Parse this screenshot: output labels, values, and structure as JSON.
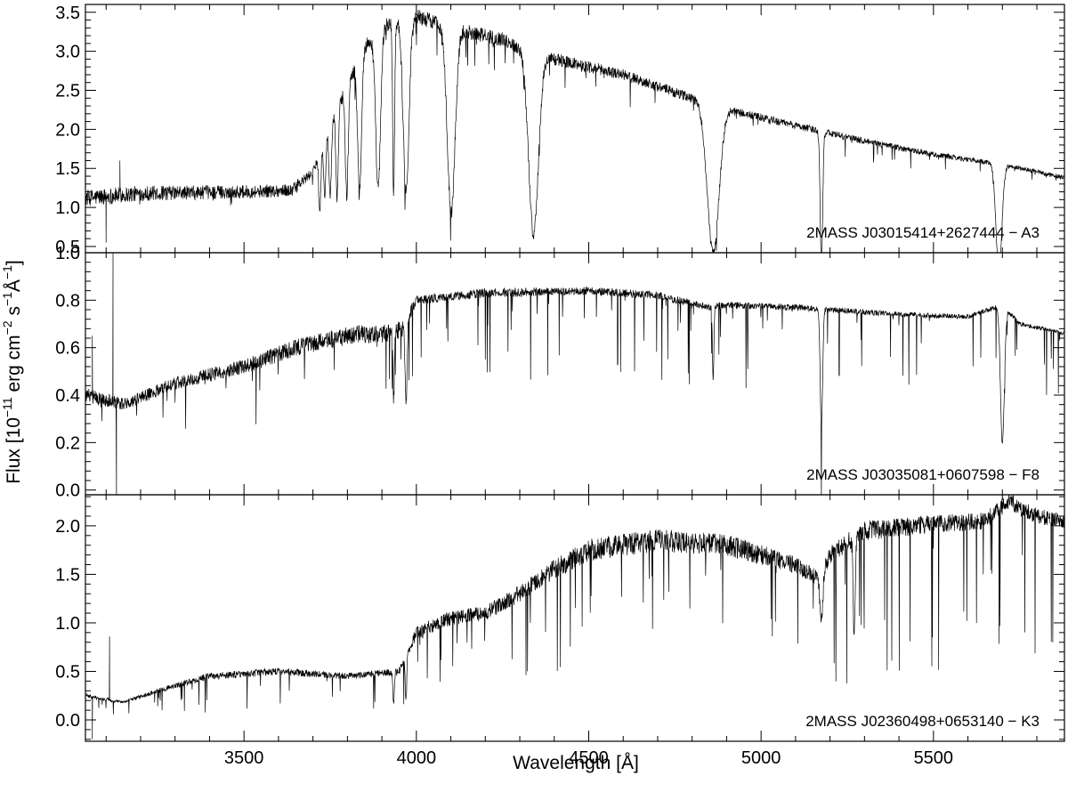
{
  "chart_data": {
    "type": "line",
    "xlabel": "Wavelength [Å]",
    "ylabel": {
      "prefix": "Flux [10",
      "exp1": "−11",
      "mid1": " erg cm",
      "exp2": "−2",
      "mid2": " s",
      "exp3": "−1",
      "mid3": "Å",
      "exp4": "−1",
      "suffix": "]"
    },
    "xlim": [
      3040,
      5880
    ],
    "xticks": [
      3500,
      4000,
      4500,
      5000,
      5500
    ],
    "xtick_labels": [
      "3500",
      "4000",
      "4500",
      "5000",
      "5500"
    ],
    "line_color": "#000000",
    "panels": [
      {
        "label": "2MASS J03015414+2627444 − A3",
        "ylim": [
          0.42,
          3.6
        ],
        "yticks": [
          0.5,
          1.0,
          1.5,
          2.0,
          2.5,
          3.0,
          3.5
        ],
        "ytick_labels": [
          "0.5",
          "1.0",
          "1.5",
          "2.0",
          "2.5",
          "3.0",
          "3.5"
        ],
        "continuum": [
          [
            3040,
            1.12
          ],
          [
            3200,
            1.18
          ],
          [
            3500,
            1.2
          ],
          [
            3640,
            1.22
          ],
          [
            3700,
            1.45
          ],
          [
            3750,
            2.05
          ],
          [
            3800,
            2.6
          ],
          [
            3850,
            3.05
          ],
          [
            3900,
            3.3
          ],
          [
            3950,
            3.42
          ],
          [
            4000,
            3.45
          ],
          [
            4050,
            3.38
          ],
          [
            4150,
            3.25
          ],
          [
            4250,
            3.15
          ],
          [
            4300,
            3.05
          ],
          [
            4400,
            2.9
          ],
          [
            4500,
            2.8
          ],
          [
            4600,
            2.7
          ],
          [
            4700,
            2.55
          ],
          [
            4800,
            2.4
          ],
          [
            4860,
            2.3
          ],
          [
            4950,
            2.2
          ],
          [
            5100,
            2.05
          ],
          [
            5300,
            1.85
          ],
          [
            5500,
            1.68
          ],
          [
            5700,
            1.55
          ],
          [
            5880,
            1.38
          ]
        ],
        "lines": [
          [
            3720,
            0.55,
            4
          ],
          [
            3734,
            0.6,
            4
          ],
          [
            3750,
            0.55,
            5
          ],
          [
            3770,
            0.5,
            5
          ],
          [
            3798,
            0.45,
            6
          ],
          [
            3835,
            0.42,
            8
          ],
          [
            3889,
            0.38,
            10
          ],
          [
            3934,
            0.35,
            4
          ],
          [
            3970,
            0.35,
            12
          ],
          [
            4101,
            0.28,
            16
          ],
          [
            4340,
            0.22,
            20
          ],
          [
            4861,
            0.18,
            24
          ],
          [
            5175,
            0.12,
            5
          ],
          [
            5690,
            0.12,
            12
          ]
        ],
        "noise": [
          [
            3040,
            0.16
          ],
          [
            3300,
            0.13
          ],
          [
            3650,
            0.11
          ],
          [
            3700,
            0.06
          ],
          [
            4000,
            0.05
          ],
          [
            5000,
            0.04
          ],
          [
            5880,
            0.03
          ]
        ],
        "fine_depth": 0.14,
        "spikes": [
          [
            3100,
            0.55
          ],
          [
            3140,
            1.6
          ]
        ]
      },
      {
        "label": "2MASS J03035081+0607598 − F8",
        "ylim": [
          -0.02,
          1.0
        ],
        "yticks": [
          0.0,
          0.2,
          0.4,
          0.6,
          0.8,
          1.0
        ],
        "ytick_labels": [
          "0.0",
          "0.2",
          "0.4",
          "0.6",
          "0.8",
          "1.0"
        ],
        "continuum": [
          [
            3040,
            0.4
          ],
          [
            3150,
            0.36
          ],
          [
            3300,
            0.45
          ],
          [
            3500,
            0.52
          ],
          [
            3650,
            0.6
          ],
          [
            3800,
            0.65
          ],
          [
            3900,
            0.66
          ],
          [
            3960,
            0.68
          ],
          [
            4000,
            0.8
          ],
          [
            4200,
            0.83
          ],
          [
            4500,
            0.84
          ],
          [
            4700,
            0.82
          ],
          [
            4850,
            0.77
          ],
          [
            4900,
            0.78
          ],
          [
            5100,
            0.77
          ],
          [
            5400,
            0.74
          ],
          [
            5600,
            0.73
          ],
          [
            5700,
            0.78
          ],
          [
            5750,
            0.7
          ],
          [
            5880,
            0.66
          ]
        ],
        "lines": [
          [
            3934,
            0.55,
            3
          ],
          [
            3970,
            0.5,
            4
          ],
          [
            4861,
            0.6,
            3
          ],
          [
            5175,
            0.35,
            5
          ],
          [
            5700,
            0.25,
            8
          ]
        ],
        "noise": [
          [
            3040,
            0.13
          ],
          [
            3300,
            0.1
          ],
          [
            3950,
            0.1
          ],
          [
            4000,
            0.04
          ],
          [
            5880,
            0.02
          ]
        ],
        "fine_depth": 0.5,
        "spikes": [
          [
            3120,
            1.0
          ],
          [
            3130,
            -0.02
          ],
          [
            3060,
            0.65
          ]
        ]
      },
      {
        "label": "2MASS J02360498+0653140 − K3",
        "ylim": [
          -0.22,
          2.32
        ],
        "yticks": [
          0.0,
          0.5,
          1.0,
          1.5,
          2.0
        ],
        "ytick_labels": [
          "0.0",
          "0.5",
          "1.0",
          "1.5",
          "2.0"
        ],
        "continuum": [
          [
            3040,
            0.25
          ],
          [
            3150,
            0.18
          ],
          [
            3250,
            0.3
          ],
          [
            3400,
            0.45
          ],
          [
            3600,
            0.5
          ],
          [
            3800,
            0.45
          ],
          [
            3950,
            0.5
          ],
          [
            4000,
            0.9
          ],
          [
            4100,
            1.05
          ],
          [
            4200,
            1.1
          ],
          [
            4300,
            1.3
          ],
          [
            4400,
            1.55
          ],
          [
            4500,
            1.75
          ],
          [
            4700,
            1.85
          ],
          [
            4900,
            1.8
          ],
          [
            5100,
            1.6
          ],
          [
            5170,
            1.45
          ],
          [
            5200,
            1.7
          ],
          [
            5300,
            1.95
          ],
          [
            5500,
            2.02
          ],
          [
            5650,
            2.05
          ],
          [
            5720,
            2.25
          ],
          [
            5800,
            2.1
          ],
          [
            5880,
            2.05
          ]
        ],
        "lines": [
          [
            3934,
            0.3,
            3
          ],
          [
            3970,
            0.3,
            3
          ],
          [
            5175,
            0.7,
            6
          ],
          [
            5270,
            0.45,
            4
          ]
        ],
        "noise": [
          [
            3040,
            0.14
          ],
          [
            3400,
            0.13
          ],
          [
            4000,
            0.12
          ],
          [
            5000,
            0.1
          ],
          [
            5880,
            0.06
          ]
        ],
        "fine_depth": 0.85,
        "spikes": [
          [
            3110,
            0.86
          ],
          [
            3060,
            -0.2
          ]
        ]
      }
    ]
  }
}
